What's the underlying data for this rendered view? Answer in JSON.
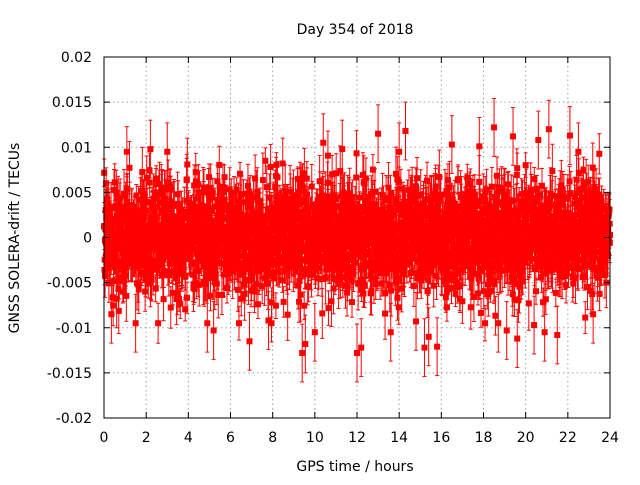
{
  "chart_data": {
    "type": "scatter",
    "title": "Day 354 of 2018",
    "xlabel": "GPS time / hours",
    "ylabel": "GNSS SOLERA-drift / TECUs",
    "xlim": [
      0,
      24
    ],
    "ylim": [
      -0.02,
      0.02
    ],
    "x_ticks": [
      0,
      2,
      4,
      6,
      8,
      10,
      12,
      14,
      16,
      18,
      20,
      22,
      24
    ],
    "x_tick_labels": [
      "0",
      "2",
      "4",
      "6",
      "8",
      "10",
      "12",
      "14",
      "16",
      "18",
      "20",
      "22",
      "24"
    ],
    "y_ticks": [
      -0.02,
      -0.015,
      -0.01,
      -0.005,
      0,
      0.005,
      0.01,
      0.015,
      0.02
    ],
    "y_tick_labels": [
      "-0.02",
      "-0.015",
      "-0.01",
      "-0.005",
      "0",
      "0.005",
      "0.01",
      "0.015",
      "0.02"
    ],
    "grid": true,
    "legend": "none",
    "series": [
      {
        "color": "#ff0000",
        "marker": "square",
        "error_bars": true,
        "n_points": 2880,
        "x_range_hours": [
          0,
          24
        ],
        "typical_y_spread": [
          -0.0065,
          0.0065
        ],
        "typical_error_halfwidth": 0.002,
        "outliers": [
          {
            "x": 0.35,
            "y": -0.0085
          },
          {
            "x": 0.6,
            "y": -0.0068
          },
          {
            "x": 2.2,
            "y": 0.0098
          },
          {
            "x": 1.5,
            "y": -0.0095
          },
          {
            "x": 3.0,
            "y": 0.0095
          },
          {
            "x": 4.9,
            "y": -0.0095
          },
          {
            "x": 5.2,
            "y": -0.0103
          },
          {
            "x": 6.9,
            "y": -0.0115
          },
          {
            "x": 7.8,
            "y": -0.0092
          },
          {
            "x": 9.4,
            "y": -0.0128
          },
          {
            "x": 9.55,
            "y": -0.0118
          },
          {
            "x": 10.0,
            "y": -0.0105
          },
          {
            "x": 10.4,
            "y": 0.0105
          },
          {
            "x": 11.3,
            "y": 0.0098
          },
          {
            "x": 12.0,
            "y": -0.0128
          },
          {
            "x": 12.2,
            "y": -0.0122
          },
          {
            "x": 13.0,
            "y": 0.0115
          },
          {
            "x": 13.6,
            "y": -0.0105
          },
          {
            "x": 14.0,
            "y": 0.0095
          },
          {
            "x": 14.3,
            "y": 0.0118
          },
          {
            "x": 14.8,
            "y": -0.0093
          },
          {
            "x": 15.2,
            "y": -0.0122
          },
          {
            "x": 15.4,
            "y": -0.011
          },
          {
            "x": 15.8,
            "y": -0.0121
          },
          {
            "x": 16.5,
            "y": 0.0103
          },
          {
            "x": 17.8,
            "y": 0.0101
          },
          {
            "x": 18.5,
            "y": 0.0122
          },
          {
            "x": 18.7,
            "y": -0.0095
          },
          {
            "x": 19.1,
            "y": -0.0103
          },
          {
            "x": 19.4,
            "y": 0.0112
          },
          {
            "x": 19.6,
            "y": -0.0112
          },
          {
            "x": 20.4,
            "y": -0.0097
          },
          {
            "x": 20.6,
            "y": 0.0108
          },
          {
            "x": 20.9,
            "y": -0.0105
          },
          {
            "x": 21.1,
            "y": 0.012
          },
          {
            "x": 21.5,
            "y": -0.0108
          },
          {
            "x": 22.1,
            "y": 0.0113
          },
          {
            "x": 22.5,
            "y": 0.0095
          },
          {
            "x": 23.2,
            "y": -0.0085
          }
        ]
      }
    ]
  }
}
